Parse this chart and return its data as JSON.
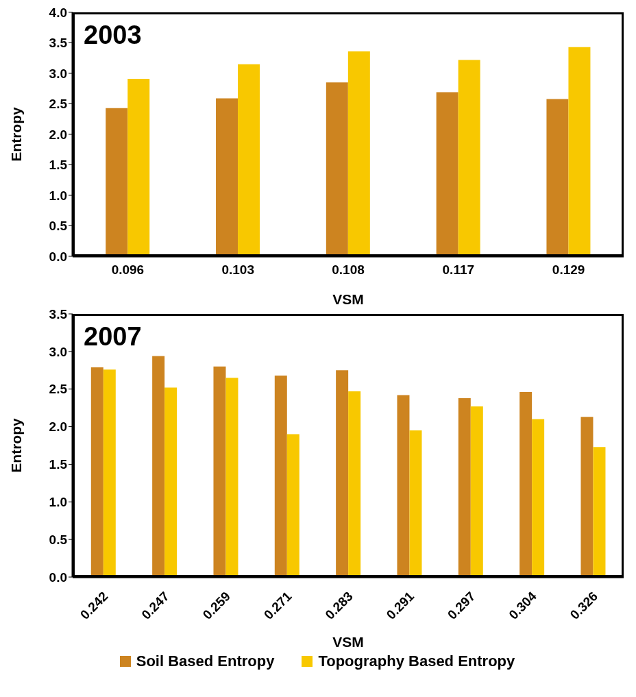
{
  "chart_data": [
    {
      "type": "bar",
      "title": "2003",
      "xlabel": "VSM",
      "ylabel": "Entropy",
      "categories": [
        "0.096",
        "0.103",
        "0.108",
        "0.117",
        "0.129"
      ],
      "series": [
        {
          "color": "#cd8420",
          "values": [
            2.43,
            2.59,
            2.85,
            2.69,
            2.58
          ]
        },
        {
          "color": "#f8c800",
          "values": [
            2.91,
            3.15,
            3.36,
            3.22,
            3.43
          ]
        }
      ],
      "ylim": [
        0,
        4
      ],
      "yticks": [
        {
          "value": 0,
          "label": "0.0"
        },
        {
          "value": 0.5,
          "label": "0.5"
        },
        {
          "value": 1,
          "label": "1.0"
        },
        {
          "value": 1.5,
          "label": "1.5"
        },
        {
          "value": 2,
          "label": "2.0"
        },
        {
          "value": 2.5,
          "label": "2.5"
        },
        {
          "value": 3,
          "label": "3.0"
        },
        {
          "value": 3.5,
          "label": "3.5"
        },
        {
          "value": 4,
          "label": "4.0"
        }
      ],
      "grid": false,
      "legend": false
    },
    {
      "type": "bar",
      "title": "2007",
      "xlabel": "VSM",
      "ylabel": "Entropy",
      "categories": [
        "0.242",
        "0.247",
        "0.259",
        "0.271",
        "0.283",
        "0.291",
        "0.297",
        "0.304",
        "0.326"
      ],
      "series": [
        {
          "name": "Soil Based Entropy",
          "color": "#cd8420",
          "values": [
            2.79,
            2.94,
            2.8,
            2.68,
            2.75,
            2.42,
            2.38,
            2.46,
            2.13
          ]
        },
        {
          "name": "Topography Based Entropy",
          "color": "#f8c800",
          "values": [
            2.76,
            2.52,
            2.65,
            1.9,
            2.47,
            1.95,
            2.27,
            2.1,
            1.73
          ]
        }
      ],
      "ylim": [
        0,
        3.5
      ],
      "yticks": [
        {
          "value": 0,
          "label": "0.0"
        },
        {
          "value": 0.5,
          "label": "0.5"
        },
        {
          "value": 1,
          "label": "1.0"
        },
        {
          "value": 1.5,
          "label": "1.5"
        },
        {
          "value": 2,
          "label": "2.0"
        },
        {
          "value": 2.5,
          "label": "2.5"
        },
        {
          "value": 3,
          "label": "3.0"
        },
        {
          "value": 3.5,
          "label": "3.5"
        }
      ],
      "grid": false,
      "legend": "bottom"
    }
  ]
}
